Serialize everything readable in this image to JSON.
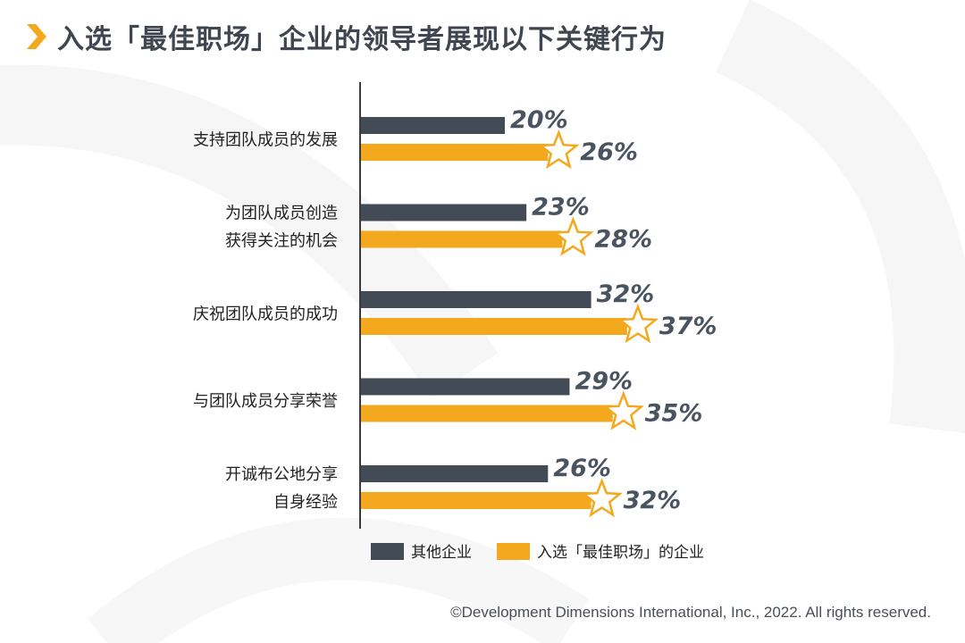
{
  "header": {
    "title": "入选「最佳职场」企业的领导者展现以下关键行为"
  },
  "colors": {
    "series_other": "#434c56",
    "series_best": "#f4a81e",
    "label_text": "#4a5360",
    "title_text": "#3f4650",
    "accent": "#f4a81e",
    "axis": "#3b3b3b"
  },
  "chart_data": {
    "type": "bar",
    "orientation": "horizontal",
    "categories": [
      "支持团队成员的发展",
      "为团队成员创造\n获得关注的机会",
      "庆祝团队成员的成功",
      "与团队成员分享荣誉",
      "开诚布公地分享\n自身经验"
    ],
    "series": [
      {
        "name": "其他企业",
        "values": [
          20,
          23,
          32,
          29,
          26
        ],
        "labels": [
          "20%",
          "23%",
          "32%",
          "29%",
          "26%"
        ]
      },
      {
        "name": "入选「最佳职场」的企业",
        "values": [
          26,
          28,
          37,
          35,
          32
        ],
        "labels": [
          "26%",
          "28%",
          "37%",
          "35%",
          "32%"
        ]
      }
    ],
    "value_unit": "%",
    "grid": false,
    "legend_placement": "bottom",
    "highlight_marker": "star-on-second-series"
  },
  "footer": {
    "copyright": "©Development Dimensions International, Inc., 2022. All rights reserved."
  }
}
